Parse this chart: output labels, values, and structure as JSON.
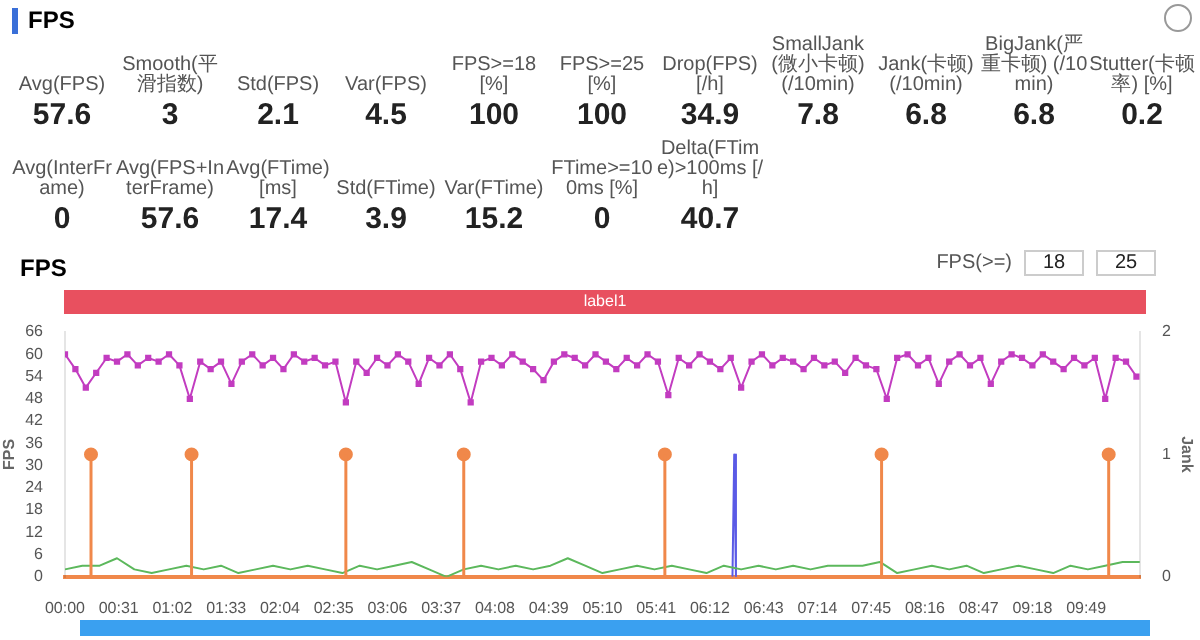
{
  "chart_data": [
    {
      "type": "other",
      "title": "FPS",
      "annotations": [
        "Avg(FPS)",
        "57.6",
        "Smooth(平滑指数)",
        "3",
        "Std(FPS)",
        "2.1",
        "Var(FPS)",
        "4.5",
        "FPS>=18 [%]",
        "100",
        "FPS>=25 [%]",
        "100",
        "Drop(FPS) [/h]",
        "34.9",
        "SmallJank(微小卡顿) (/10min)",
        "7.8",
        "Jank(卡顿) (/10min)",
        "6.8",
        "BigJank(严重卡顿) (/10min)",
        "6.8",
        "Stutter(卡顿率) [%]",
        "0.2",
        "Avg(InterFrame)",
        "0",
        "Avg(FPS+InterFrame)",
        "57.6",
        "Avg(FTime) [ms]",
        "17.4",
        "Std(FTime)",
        "3.9",
        "Var(FTime)",
        "15.2",
        "FTime>=100ms [%]",
        "0",
        "Delta(FTime)>100ms [/h]",
        "40.7"
      ]
    },
    {
      "type": "line",
      "title": "FPS",
      "annotations": [
        "label1",
        "FPS(>=)",
        "18",
        "25"
      ],
      "ylabel": "FPS",
      "y2label": "Jank",
      "legend": false,
      "grid": false,
      "xlim": [
        0,
        620
      ],
      "xticks": [
        {
          "value": 0,
          "label": "00:00"
        },
        {
          "value": 31,
          "label": "00:31"
        },
        {
          "value": 62,
          "label": "01:02"
        },
        {
          "value": 93,
          "label": "01:33"
        },
        {
          "value": 124,
          "label": "02:04"
        },
        {
          "value": 155,
          "label": "02:35"
        },
        {
          "value": 186,
          "label": "03:06"
        },
        {
          "value": 217,
          "label": "03:37"
        },
        {
          "value": 248,
          "label": "04:08"
        },
        {
          "value": 279,
          "label": "04:39"
        },
        {
          "value": 310,
          "label": "05:10"
        },
        {
          "value": 341,
          "label": "05:41"
        },
        {
          "value": 372,
          "label": "06:12"
        },
        {
          "value": 403,
          "label": "06:43"
        },
        {
          "value": 434,
          "label": "07:14"
        },
        {
          "value": 465,
          "label": "07:45"
        },
        {
          "value": 496,
          "label": "08:16"
        },
        {
          "value": 527,
          "label": "08:47"
        },
        {
          "value": 558,
          "label": "09:18"
        },
        {
          "value": 589,
          "label": "09:49"
        }
      ],
      "ylim": [
        0,
        66
      ],
      "yticks": [
        0,
        6,
        12,
        18,
        24,
        30,
        36,
        42,
        48,
        54,
        60,
        66
      ],
      "y2lim": [
        0,
        2
      ],
      "y2ticks": [
        0,
        1,
        2
      ],
      "series": [
        {
          "type": "line",
          "color": "#c23cc0",
          "marker": "square",
          "x": [
            0,
            6,
            12,
            18,
            24,
            30,
            36,
            42,
            48,
            54,
            60,
            66,
            72,
            78,
            84,
            90,
            96,
            102,
            108,
            114,
            120,
            126,
            132,
            138,
            144,
            150,
            156,
            162,
            168,
            174,
            180,
            186,
            192,
            198,
            204,
            210,
            216,
            222,
            228,
            234,
            240,
            246,
            252,
            258,
            264,
            270,
            276,
            282,
            288,
            294,
            300,
            306,
            312,
            318,
            324,
            330,
            336,
            342,
            348,
            354,
            360,
            366,
            372,
            378,
            384,
            390,
            396,
            402,
            408,
            414,
            420,
            426,
            432,
            438,
            444,
            450,
            456,
            462,
            468,
            474,
            480,
            486,
            492,
            498,
            504,
            510,
            516,
            522,
            528,
            534,
            540,
            546,
            552,
            558,
            564,
            570,
            576,
            582,
            588,
            594,
            600,
            606,
            612,
            618
          ],
          "values": [
            60,
            56,
            51,
            55,
            59,
            58,
            60,
            57,
            59,
            58,
            60,
            57,
            48,
            58,
            56,
            58,
            52,
            58,
            60,
            57,
            59,
            56,
            60,
            58,
            59,
            57,
            58,
            47,
            58,
            55,
            59,
            57,
            60,
            58,
            52,
            59,
            57,
            60,
            56,
            47,
            58,
            59,
            57,
            60,
            58,
            56,
            53,
            58,
            60,
            59,
            57,
            60,
            58,
            56,
            59,
            57,
            60,
            58,
            49,
            59,
            57,
            60,
            58,
            56,
            59,
            51,
            58,
            60,
            57,
            59,
            58,
            56,
            59,
            57,
            58,
            55,
            59,
            57,
            56,
            48,
            59,
            60,
            57,
            59,
            52,
            58,
            60,
            57,
            59,
            52,
            58,
            60,
            59,
            57,
            60,
            58,
            56,
            59,
            57,
            59,
            48,
            59,
            58,
            54
          ]
        },
        {
          "type": "line",
          "color": "#5cb85c",
          "marker": "none",
          "x": [
            0,
            10,
            20,
            30,
            40,
            50,
            60,
            70,
            80,
            90,
            100,
            110,
            120,
            130,
            140,
            150,
            160,
            170,
            180,
            190,
            200,
            210,
            220,
            230,
            240,
            250,
            260,
            270,
            280,
            290,
            300,
            310,
            320,
            330,
            340,
            350,
            360,
            370,
            380,
            390,
            400,
            410,
            420,
            430,
            440,
            450,
            460,
            470,
            480,
            490,
            500,
            510,
            520,
            530,
            540,
            550,
            560,
            570,
            580,
            590,
            600,
            610,
            620
          ],
          "values": [
            2,
            3,
            3,
            5,
            2,
            1,
            2,
            3,
            2,
            3,
            1,
            2,
            3,
            2,
            3,
            2,
            1,
            3,
            2,
            3,
            4,
            2,
            0,
            2,
            3,
            2,
            3,
            2,
            3,
            5,
            3,
            1,
            2,
            3,
            2,
            3,
            2,
            1,
            3,
            2,
            3,
            2,
            3,
            2,
            3,
            3,
            3,
            4,
            1,
            2,
            3,
            2,
            3,
            1,
            2,
            3,
            2,
            1,
            3,
            2,
            3,
            4,
            4
          ]
        },
        {
          "type": "line",
          "color": "#5a5ae6",
          "marker": "none",
          "axis": "y2",
          "x": [
            385,
            386,
            387
          ],
          "values": [
            0,
            1,
            0
          ]
        },
        {
          "type": "lollipop",
          "color": "#f0884a",
          "marker": "circle",
          "axis": "y2",
          "x": [
            15,
            73,
            162,
            230,
            346,
            471,
            602
          ],
          "values": [
            1,
            1,
            1,
            1,
            1,
            1,
            1
          ]
        }
      ]
    }
  ]
}
